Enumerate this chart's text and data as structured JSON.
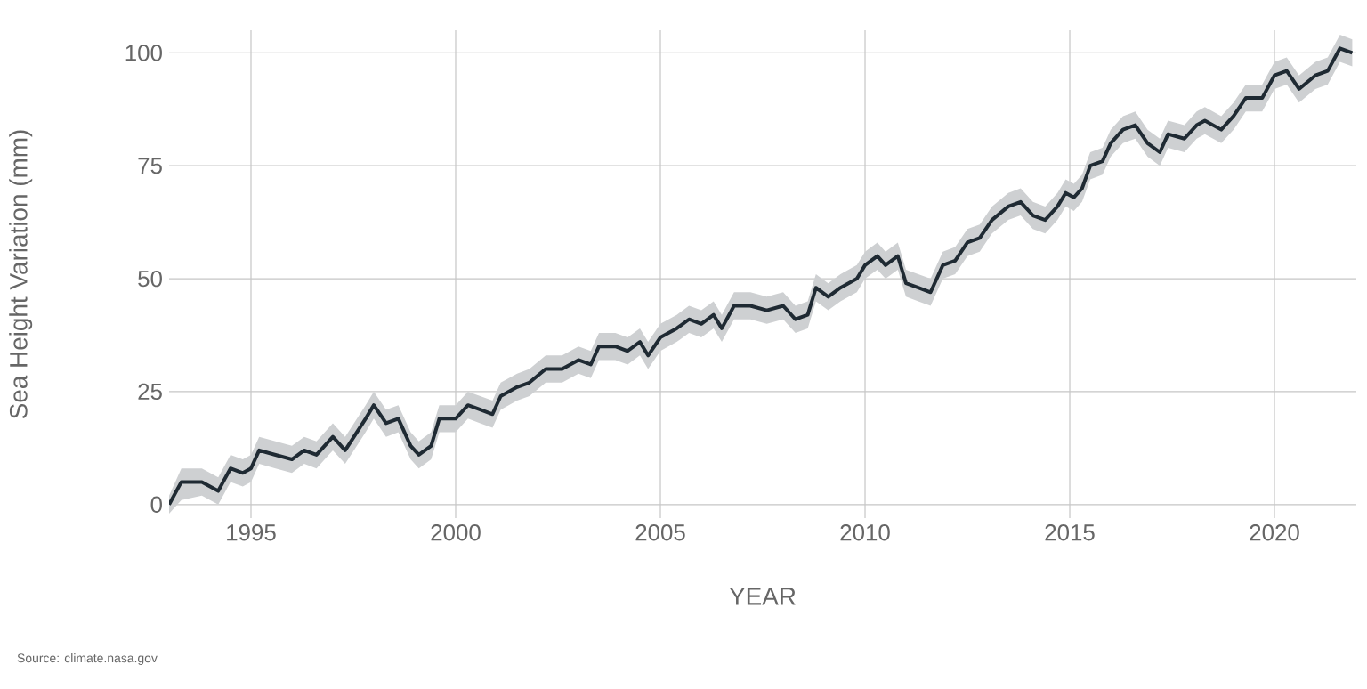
{
  "chart_data": {
    "type": "line",
    "xlabel": "YEAR",
    "ylabel": "Sea Height Variation (mm)",
    "annotations": [
      "Source: climate.nasa.gov"
    ],
    "x": [
      1993.0,
      1993.3,
      1993.8,
      1994.2,
      1994.5,
      1994.8,
      1995.0,
      1995.2,
      1995.6,
      1996.0,
      1996.3,
      1996.6,
      1997.0,
      1997.3,
      1997.8,
      1998.0,
      1998.3,
      1998.6,
      1998.9,
      1999.1,
      1999.4,
      1999.6,
      2000.0,
      2000.3,
      2000.6,
      2000.9,
      2001.1,
      2001.5,
      2001.8,
      2002.2,
      2002.6,
      2003.0,
      2003.3,
      2003.5,
      2003.9,
      2004.2,
      2004.5,
      2004.7,
      2005.0,
      2005.4,
      2005.7,
      2006.0,
      2006.3,
      2006.5,
      2006.8,
      2007.2,
      2007.6,
      2008.0,
      2008.3,
      2008.6,
      2008.8,
      2009.1,
      2009.4,
      2009.8,
      2010.0,
      2010.3,
      2010.5,
      2010.8,
      2011.0,
      2011.3,
      2011.6,
      2011.9,
      2012.2,
      2012.5,
      2012.8,
      2013.1,
      2013.5,
      2013.8,
      2014.1,
      2014.4,
      2014.7,
      2014.9,
      2015.1,
      2015.3,
      2015.5,
      2015.8,
      2016.0,
      2016.3,
      2016.6,
      2016.9,
      2017.2,
      2017.4,
      2017.8,
      2018.1,
      2018.3,
      2018.7,
      2019.0,
      2019.3,
      2019.7,
      2020.0,
      2020.3,
      2020.6,
      2021.0,
      2021.3,
      2021.6,
      2021.9
    ],
    "series": [
      {
        "color": "#1f2a33",
        "values": [
          0,
          5,
          5,
          3,
          8,
          7,
          8,
          12,
          11,
          10,
          12,
          11,
          15,
          12,
          19,
          22,
          18,
          19,
          13,
          11,
          13,
          19,
          19,
          22,
          21,
          20,
          24,
          26,
          27,
          30,
          30,
          32,
          31,
          35,
          35,
          34,
          36,
          33,
          37,
          39,
          41,
          40,
          42,
          39,
          44,
          44,
          43,
          44,
          41,
          42,
          48,
          46,
          48,
          50,
          53,
          55,
          53,
          55,
          49,
          48,
          47,
          53,
          54,
          58,
          59,
          63,
          66,
          67,
          64,
          63,
          66,
          69,
          68,
          70,
          75,
          76,
          80,
          83,
          84,
          80,
          78,
          82,
          81,
          84,
          85,
          83,
          86,
          90,
          90,
          95,
          96,
          92,
          95,
          96,
          101,
          100
        ],
        "lower": [
          -2,
          1,
          2,
          0,
          5,
          4,
          5,
          9,
          8,
          7,
          9,
          8,
          12,
          9,
          16,
          19,
          15,
          16,
          10,
          8,
          10,
          16,
          16,
          19,
          18,
          17,
          21,
          23,
          24,
          27,
          27,
          29,
          28,
          32,
          32,
          31,
          33,
          30,
          34,
          36,
          38,
          37,
          39,
          36,
          41,
          41,
          40,
          41,
          38,
          39,
          45,
          43,
          45,
          47,
          50,
          52,
          50,
          52,
          46,
          45,
          44,
          50,
          51,
          55,
          56,
          60,
          63,
          64,
          61,
          60,
          63,
          66,
          65,
          67,
          72,
          73,
          77,
          80,
          81,
          77,
          75,
          79,
          78,
          81,
          82,
          80,
          83,
          87,
          87,
          92,
          93,
          89,
          92,
          93,
          98,
          97
        ],
        "upper": [
          2,
          8,
          8,
          6,
          11,
          10,
          11,
          15,
          14,
          13,
          15,
          14,
          18,
          15,
          22,
          25,
          21,
          22,
          16,
          14,
          16,
          22,
          22,
          25,
          24,
          23,
          27,
          29,
          30,
          33,
          33,
          35,
          34,
          38,
          38,
          37,
          39,
          36,
          40,
          42,
          44,
          43,
          45,
          42,
          47,
          47,
          46,
          47,
          44,
          45,
          51,
          49,
          51,
          53,
          56,
          58,
          56,
          58,
          52,
          51,
          50,
          56,
          57,
          61,
          62,
          66,
          69,
          70,
          67,
          66,
          69,
          72,
          71,
          73,
          78,
          79,
          83,
          86,
          87,
          83,
          81,
          85,
          84,
          87,
          88,
          86,
          89,
          93,
          93,
          98,
          99,
          95,
          98,
          99,
          104,
          103
        ]
      }
    ],
    "xlim": [
      1993,
      2022
    ],
    "ylim": [
      -3,
      105
    ],
    "xticks": [
      1995,
      2000,
      2005,
      2010,
      2015,
      2020
    ],
    "yticks": [
      0,
      25,
      50,
      75,
      100
    ],
    "grid": true,
    "marker": "none",
    "line_style": "solid"
  }
}
